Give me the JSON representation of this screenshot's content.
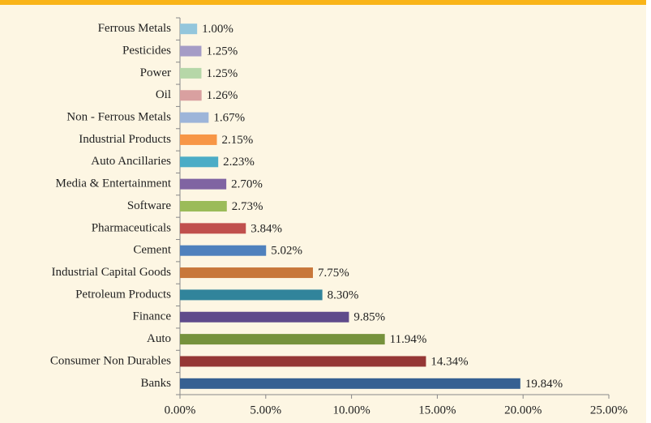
{
  "chart_data": {
    "type": "bar",
    "orientation": "horizontal",
    "categories": [
      "Ferrous Metals",
      "Pesticides",
      "Power",
      "Oil",
      "Non - Ferrous Metals",
      "Industrial Products",
      "Auto Ancillaries",
      "Media & Entertainment",
      "Software",
      "Pharmaceuticals",
      "Cement",
      "Industrial Capital Goods",
      "Petroleum Products",
      "Finance",
      "Auto",
      "Consumer Non Durables",
      "Banks"
    ],
    "values": [
      1.0,
      1.25,
      1.25,
      1.26,
      1.67,
      2.15,
      2.23,
      2.7,
      2.73,
      3.84,
      5.02,
      7.75,
      8.3,
      9.85,
      11.94,
      14.34,
      19.84
    ],
    "value_labels": [
      "1.00%",
      "1.25%",
      "1.25%",
      "1.26%",
      "1.67%",
      "2.15%",
      "2.23%",
      "2.70%",
      "2.73%",
      "3.84%",
      "5.02%",
      "7.75%",
      "8.30%",
      "9.85%",
      "11.94%",
      "14.34%",
      "19.84%"
    ],
    "colors": [
      "#93c6dc",
      "#a59cc6",
      "#b6d7a8",
      "#d9a0a0",
      "#9db5d9",
      "#f79646",
      "#4bacc6",
      "#8064a2",
      "#9bbb59",
      "#c0504d",
      "#4f81bd",
      "#c8773a",
      "#31849b",
      "#5f4b8b",
      "#76923c",
      "#953735",
      "#366092"
    ],
    "xlim": [
      0,
      25
    ],
    "xticks": [
      {
        "value": 0,
        "label": "0.00%"
      },
      {
        "value": 5,
        "label": "5.00%"
      },
      {
        "value": 10,
        "label": "10.00%"
      },
      {
        "value": 15,
        "label": "15.00%"
      },
      {
        "value": 20,
        "label": "20.00%"
      },
      {
        "value": 25,
        "label": "25.00%"
      }
    ]
  }
}
